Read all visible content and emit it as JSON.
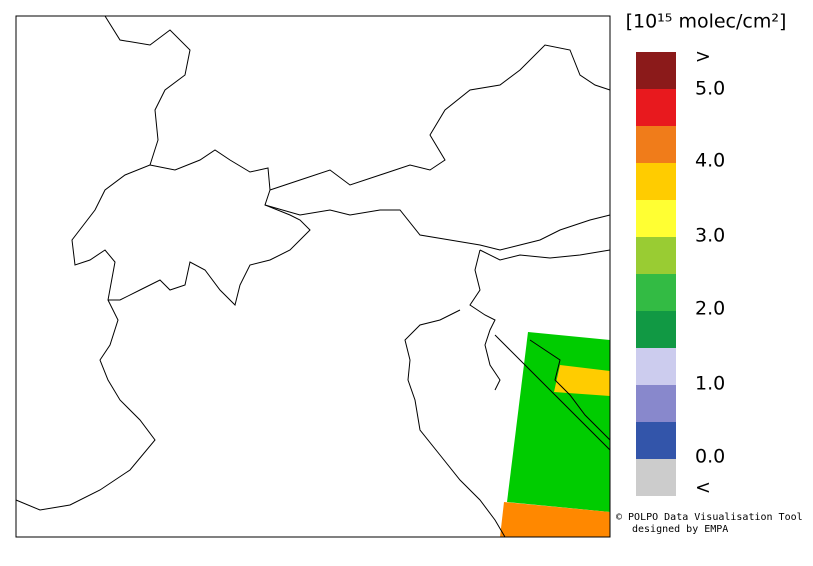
{
  "colorbar": {
    "title": "[10¹⁵ molec/cm²]",
    "colors": [
      "#8b1a1a",
      "#e8191e",
      "#f07c1a",
      "#ffcc00",
      "#ffff33",
      "#99cc33",
      "#33bb44",
      "#119944",
      "#ccccee",
      "#8888cc",
      "#3355aa",
      "#cccccc"
    ],
    "labels": [
      ">",
      "5.0",
      "4.0",
      "3.0",
      "2.0",
      "1.0",
      "0.0",
      "<"
    ]
  },
  "credits": [
    "© POLPO Data Visualisation Tool",
    "designed by EMPA"
  ]
}
